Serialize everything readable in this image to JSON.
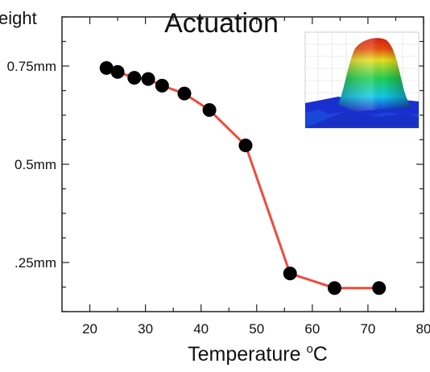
{
  "chart_data": {
    "type": "line",
    "title": "Actuation",
    "xlabel": "Temperature",
    "xlabel_unit_sup": "o",
    "xlabel_unit": "C",
    "ylabel": "eight",
    "xlim": [
      15,
      80
    ],
    "ylim": [
      0.125,
      0.875
    ],
    "x_ticks": [
      20,
      30,
      40,
      50,
      60,
      70
    ],
    "x_tick_labels": [
      "20",
      "30",
      "40",
      "50",
      "60",
      "70"
    ],
    "x_tick_label_cut": "80",
    "y_ticks": [
      0.25,
      0.5,
      0.75
    ],
    "y_tick_labels": [
      ".25mm",
      "0.5mm",
      "0.75mm"
    ],
    "grid": false,
    "series": [
      {
        "x": [
          23,
          25,
          28,
          30.5,
          33,
          37,
          41.5,
          48,
          56,
          64,
          72
        ],
        "y": [
          0.745,
          0.735,
          0.72,
          0.717,
          0.7,
          0.68,
          0.638,
          0.548,
          0.222,
          0.185,
          0.185
        ],
        "line_color": "#f04a3c",
        "marker_color": "#000000"
      }
    ],
    "inset": {
      "icon": "3d-surface-plot-inset",
      "colors": [
        "#1a2fd0",
        "#10c8e8",
        "#20d050",
        "#e8e020",
        "#e83010"
      ]
    }
  }
}
